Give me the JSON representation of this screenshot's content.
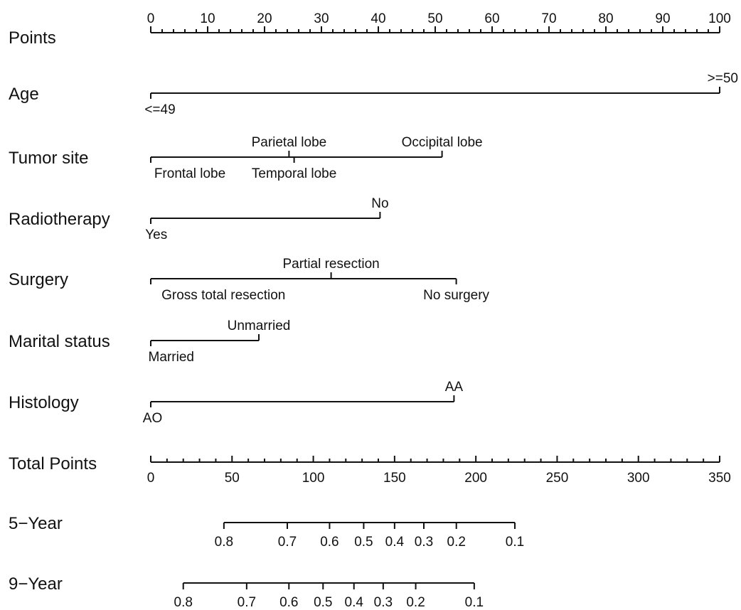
{
  "chart_data": {
    "type": "nomogram",
    "points_scale": {
      "label": "Points",
      "min": 0,
      "max": 100,
      "major_ticks": [
        0,
        10,
        20,
        30,
        40,
        50,
        60,
        70,
        80,
        90,
        100
      ],
      "minor_step": 2
    },
    "variables": [
      {
        "name": "Age",
        "levels": [
          {
            "label": "<=49",
            "points": 0,
            "side": "below"
          },
          {
            "label": ">=50",
            "points": 100,
            "side": "above"
          }
        ]
      },
      {
        "name": "Tumor site",
        "levels": [
          {
            "label": "Frontal lobe",
            "points": 0,
            "side": "below"
          },
          {
            "label": "Parietal lobe",
            "points": 24.3,
            "side": "above"
          },
          {
            "label": "Temporal lobe",
            "points": 25.2,
            "side": "below"
          },
          {
            "label": "Occipital lobe",
            "points": 51.2,
            "side": "above"
          }
        ]
      },
      {
        "name": "Radiotherapy",
        "levels": [
          {
            "label": "Yes",
            "points": 0,
            "side": "below"
          },
          {
            "label": "No",
            "points": 40.3,
            "side": "above"
          }
        ]
      },
      {
        "name": "Surgery",
        "levels": [
          {
            "label": "Gross total resection",
            "points": 0,
            "side": "below"
          },
          {
            "label": "Partial resection",
            "points": 31.7,
            "side": "above"
          },
          {
            "label": "No surgery",
            "points": 53.7,
            "side": "below"
          }
        ]
      },
      {
        "name": "Marital status",
        "levels": [
          {
            "label": "Married",
            "points": 0,
            "side": "below"
          },
          {
            "label": "Unmarried",
            "points": 19,
            "side": "above"
          }
        ]
      },
      {
        "name": "Histology",
        "levels": [
          {
            "label": "AO",
            "points": 0,
            "side": "below"
          },
          {
            "label": "AA",
            "points": 53.3,
            "side": "above"
          }
        ]
      }
    ],
    "total_points_scale": {
      "label": "Total Points",
      "min": 0,
      "max": 350,
      "major_ticks": [
        0,
        50,
        100,
        150,
        200,
        250,
        300,
        350
      ],
      "minor_step": 10
    },
    "survival_scales": [
      {
        "name": "5−Year",
        "ticks": [
          {
            "label": "0.8",
            "total_points": 45
          },
          {
            "label": "0.7",
            "total_points": 84
          },
          {
            "label": "0.6",
            "total_points": 110
          },
          {
            "label": "0.5",
            "total_points": 131
          },
          {
            "label": "0.4",
            "total_points": 150
          },
          {
            "label": "0.3",
            "total_points": 168
          },
          {
            "label": "0.2",
            "total_points": 188
          },
          {
            "label": "0.1",
            "total_points": 224
          }
        ]
      },
      {
        "name": "9−Year",
        "ticks": [
          {
            "label": "0.8",
            "total_points": 20
          },
          {
            "label": "0.7",
            "total_points": 59
          },
          {
            "label": "0.6",
            "total_points": 85
          },
          {
            "label": "0.5",
            "total_points": 106
          },
          {
            "label": "0.4",
            "total_points": 125
          },
          {
            "label": "0.3",
            "total_points": 143
          },
          {
            "label": "0.2",
            "total_points": 163
          },
          {
            "label": "0.1",
            "total_points": 199
          }
        ]
      }
    ]
  }
}
